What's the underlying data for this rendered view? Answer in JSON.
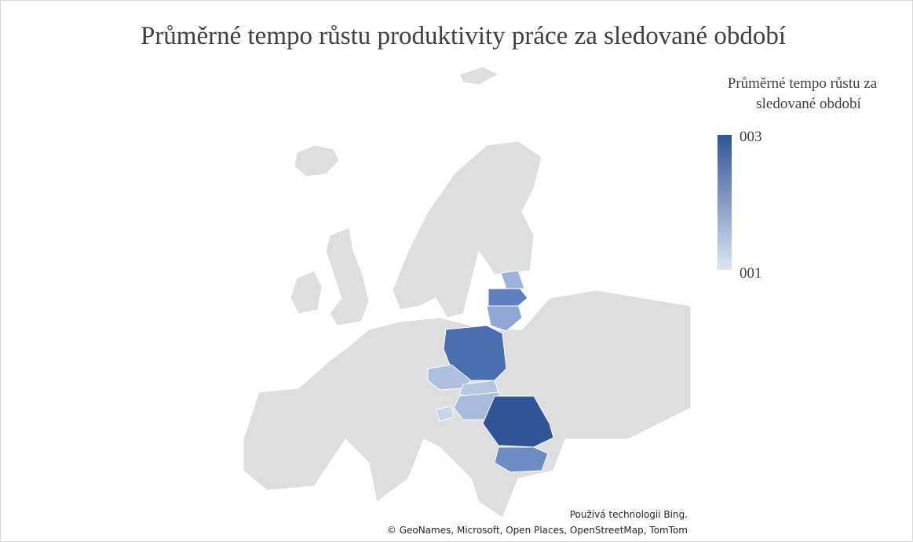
{
  "chart_data": {
    "type": "map",
    "title": "Průměrné tempo růstu produktivity práce za sledované období",
    "legend": {
      "title": [
        "Průměrné tempo růstu za",
        "sledované období"
      ],
      "max_label": "003",
      "min_label": "001",
      "colors": [
        "#dce5f5",
        "#2f5597"
      ]
    },
    "attribution": [
      "Používá technologii Bing.",
      "© GeoNames, Microsoft, Open Places, OpenStreetMap, TomTom"
    ]
  }
}
